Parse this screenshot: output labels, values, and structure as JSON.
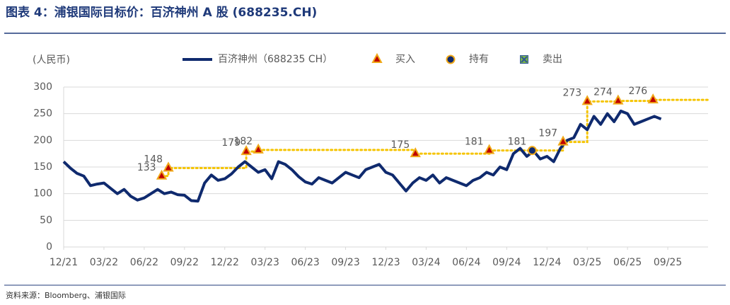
{
  "chart_data": {
    "type": "line",
    "title": "图表 4：浦银国际目标价：百济神州 A 股 (688235.CH)",
    "y_label": "(人民币)",
    "source": "资料来源：Bloomberg、浦银国际",
    "xlim": [
      0,
      48
    ],
    "xticks": [
      {
        "value": 0,
        "label": "12/21"
      },
      {
        "value": 3,
        "label": "03/22"
      },
      {
        "value": 6,
        "label": "06/22"
      },
      {
        "value": 9,
        "label": "09/22"
      },
      {
        "value": 12,
        "label": "12/22"
      },
      {
        "value": 15,
        "label": "03/23"
      },
      {
        "value": 18,
        "label": "06/23"
      },
      {
        "value": 21,
        "label": "09/23"
      },
      {
        "value": 24,
        "label": "12/23"
      },
      {
        "value": 27,
        "label": "03/24"
      },
      {
        "value": 30,
        "label": "06/24"
      },
      {
        "value": 33,
        "label": "09/24"
      },
      {
        "value": 36,
        "label": "12/24"
      },
      {
        "value": 39,
        "label": "03/25"
      },
      {
        "value": 42,
        "label": "06/25"
      },
      {
        "value": 45,
        "label": "09/25"
      }
    ],
    "ylim": [
      0,
      300
    ],
    "yticks": [
      0,
      50,
      100,
      150,
      200,
      250,
      300
    ],
    "grid": true,
    "series": [
      {
        "name": "百济神州（688235 CH）",
        "color": "#0f2a6e",
        "marker": "none",
        "x": [
          0,
          0.5,
          1,
          1.5,
          2,
          2.5,
          3,
          3.5,
          4,
          4.5,
          5,
          5.5,
          6,
          6.5,
          7,
          7.5,
          8,
          8.5,
          9,
          9.5,
          10,
          10.5,
          11,
          11.5,
          12,
          12.5,
          13,
          13.5,
          14,
          14.5,
          15,
          15.5,
          16,
          16.5,
          17,
          17.5,
          18,
          18.5,
          19,
          19.5,
          20,
          20.5,
          21,
          21.5,
          22,
          22.5,
          23,
          23.5,
          24,
          24.5,
          25,
          25.5,
          26,
          26.5,
          27,
          27.5,
          28,
          28.5,
          29,
          29.5,
          30,
          30.5,
          31,
          31.5,
          32,
          32.5,
          33,
          33.5,
          34,
          34.5,
          35,
          35.5,
          36,
          36.5,
          37,
          37.5,
          38,
          38.5,
          39,
          39.5,
          40,
          40.5,
          41,
          41.5,
          42,
          42.5,
          43,
          43.5,
          44,
          44.5
        ],
        "values": [
          160,
          148,
          138,
          133,
          115,
          118,
          120,
          110,
          100,
          108,
          95,
          88,
          92,
          100,
          108,
          100,
          103,
          98,
          97,
          87,
          86,
          120,
          135,
          125,
          128,
          137,
          150,
          160,
          150,
          140,
          145,
          128,
          160,
          155,
          145,
          132,
          122,
          118,
          130,
          125,
          120,
          130,
          140,
          135,
          130,
          145,
          150,
          155,
          140,
          135,
          120,
          105,
          120,
          130,
          125,
          135,
          120,
          130,
          125,
          120,
          115,
          125,
          130,
          140,
          135,
          150,
          145,
          175,
          185,
          170,
          180,
          165,
          170,
          160,
          185,
          200,
          205,
          230,
          220,
          245,
          230,
          250,
          235,
          255,
          250,
          230,
          235,
          240,
          245,
          240
        ]
      },
      {
        "name": "买入",
        "color": "#f0a818",
        "marker": "triangle",
        "x": [
          7.3,
          7.8,
          13.6,
          14.5,
          26.2,
          31.7,
          37.2,
          39,
          41.3,
          43.9
        ],
        "values": [
          133,
          148,
          179,
          182,
          175,
          181,
          197,
          273,
          274,
          276
        ]
      },
      {
        "name": "持有",
        "color": "#f0a818",
        "marker": "circle",
        "x": [
          34.9
        ],
        "values": [
          181
        ]
      },
      {
        "name": "卖出",
        "color": "#7ab648",
        "marker": "square-x",
        "x": [],
        "values": []
      }
    ]
  }
}
